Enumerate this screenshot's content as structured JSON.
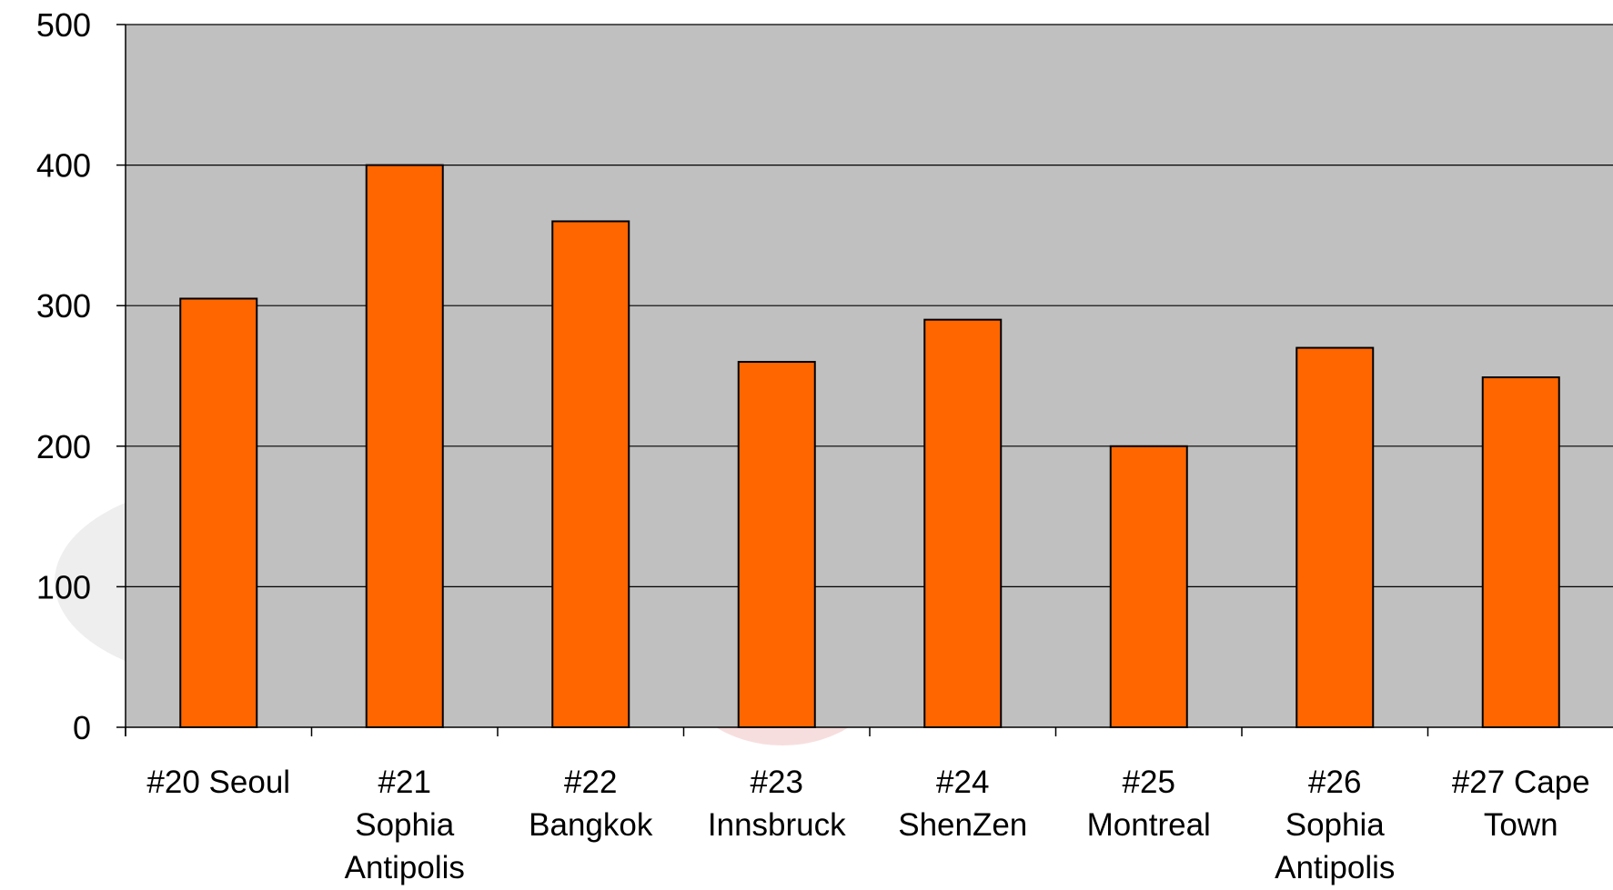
{
  "chart_data": {
    "type": "bar",
    "title": "",
    "xlabel": "",
    "ylabel": "",
    "ylim": [
      0,
      500
    ],
    "yticks": [
      0,
      100,
      200,
      300,
      400,
      500
    ],
    "grid": true,
    "legend": "none",
    "categories": [
      [
        "#20 Seoul"
      ],
      [
        "#21",
        "Sophia",
        "Antipolis"
      ],
      [
        "#22",
        "Bangkok"
      ],
      [
        "#23",
        "Innsbruck"
      ],
      [
        "#24",
        "ShenZen"
      ],
      [
        "#25",
        "Montreal"
      ],
      [
        "#26",
        "Sophia",
        "Antipolis"
      ],
      [
        "#27 Cape",
        "Town"
      ]
    ],
    "values": [
      305,
      400,
      360,
      260,
      290,
      200,
      270,
      249
    ],
    "colors": {
      "bar_fill": "#ff6600",
      "bar_stroke": "#000000",
      "plot_background": "#c0c0c0",
      "gridline": "#000000",
      "axis": "#000000",
      "watermark": "#ece6e6"
    }
  }
}
